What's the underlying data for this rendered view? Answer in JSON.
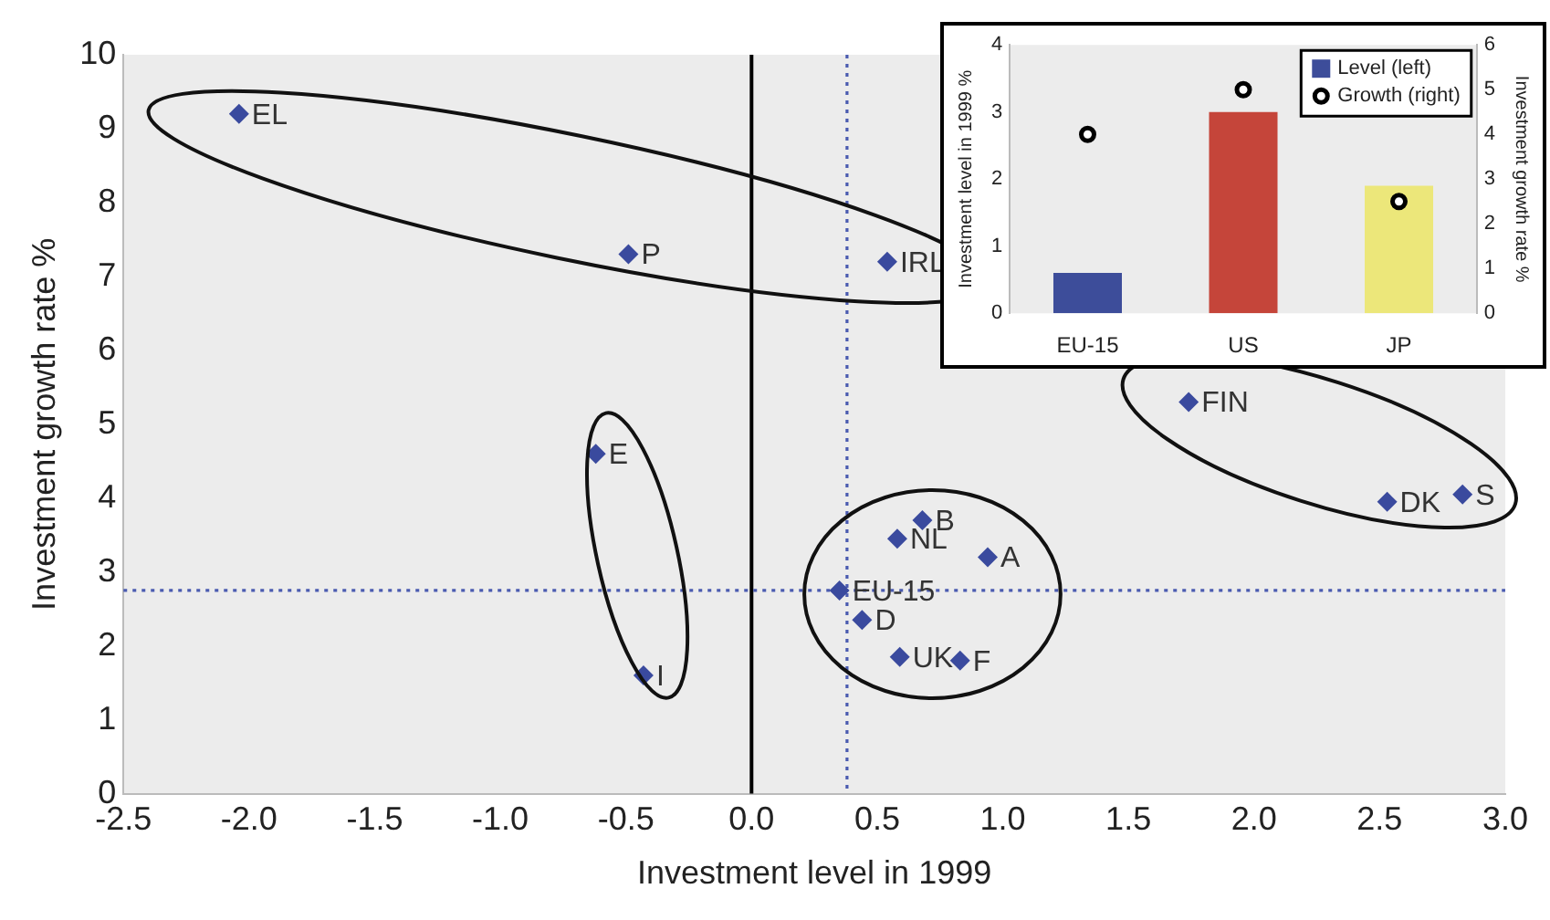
{
  "chart_data": [
    {
      "type": "scatter",
      "xlabel": "Investment level in 1999",
      "ylabel": "Investment growth rate %",
      "x": [
        -2.04,
        -0.49,
        0.54,
        -0.62,
        -0.43,
        0.35,
        0.44,
        0.68,
        0.58,
        0.94,
        0.59,
        0.83,
        1.74,
        2.53,
        2.83
      ],
      "values": [
        9.2,
        7.3,
        7.2,
        4.6,
        1.6,
        2.75,
        2.35,
        3.7,
        3.45,
        3.2,
        1.85,
        1.8,
        5.3,
        3.95,
        4.05
      ],
      "color": "#3a4a9e",
      "marker": "diamond",
      "xlim": [
        -2.5,
        3
      ],
      "xticks": [
        -2.5,
        {
          "value": -2,
          "label": "-2.0"
        },
        -1.5,
        {
          "value": -1,
          "label": "-1.0"
        },
        -0.5,
        {
          "value": 0,
          "label": "0.0"
        },
        0.5,
        {
          "value": 1,
          "label": "1.0"
        },
        1.5,
        {
          "value": 2,
          "label": "2.0"
        },
        2.5,
        {
          "value": 3,
          "label": "3.0"
        }
      ],
      "ylim": [
        0,
        10
      ],
      "yticks": [
        0,
        1,
        2,
        3,
        4,
        5,
        6,
        7,
        8,
        9,
        10
      ],
      "ref_lines": [
        {
          "axis": "x",
          "value": 0,
          "color": "#000000",
          "line_style": "solid"
        },
        {
          "axis": "x",
          "value": 0.38,
          "color": "#4a5bb0",
          "line_style": "dotted"
        },
        {
          "axis": "y",
          "value": 2.75,
          "color": "#4a5bb0",
          "line_style": "dotted"
        }
      ],
      "annotations": [
        {
          "text": "EL",
          "x": -2.04,
          "y": 9.2
        },
        {
          "text": "P",
          "x": -0.49,
          "y": 7.3
        },
        {
          "text": "IRL",
          "x": 0.54,
          "y": 7.2
        },
        {
          "text": "E",
          "x": -0.62,
          "y": 4.6
        },
        {
          "text": "I",
          "x": -0.43,
          "y": 1.6
        },
        {
          "text": "EU-15",
          "x": 0.35,
          "y": 2.75
        },
        {
          "text": "D",
          "x": 0.44,
          "y": 2.35
        },
        {
          "text": "B",
          "x": 0.68,
          "y": 3.7
        },
        {
          "text": "NL",
          "x": 0.58,
          "y": 3.45
        },
        {
          "text": "A",
          "x": 0.94,
          "y": 3.2
        },
        {
          "text": "UK",
          "x": 0.59,
          "y": 1.85
        },
        {
          "text": "F",
          "x": 0.83,
          "y": 1.8
        },
        {
          "text": "FIN",
          "x": 1.74,
          "y": 5.3
        },
        {
          "text": "DK",
          "x": 2.53,
          "y": 3.95
        },
        {
          "text": "S",
          "x": 2.83,
          "y": 4.05
        }
      ]
    },
    {
      "type": "bar",
      "categories": [
        "EU-15",
        "US",
        "JP"
      ],
      "ylabel": "Investment level in 1999 %",
      "y2label": "Investment growth rate %",
      "series": [
        {
          "name": "Level (left)",
          "color": "#3d4d9a",
          "colors": [
            "#3d4d9a",
            "#c5453a",
            "#ece77a"
          ],
          "values": [
            0.6,
            3.0,
            1.9
          ]
        },
        {
          "name": "Growth (right)",
          "type": "scatter",
          "axis": "y2",
          "color": "#000000",
          "x": [
            "EU-15",
            "US",
            "JP"
          ],
          "values": [
            4.0,
            5.0,
            2.5
          ]
        }
      ],
      "marker": "circle",
      "ylim": [
        0,
        4
      ],
      "yticks": [
        0,
        1,
        2,
        3,
        4
      ],
      "y2lim": [
        0,
        6
      ],
      "y2ticks": [
        0,
        1,
        2,
        3,
        4,
        5,
        6
      ],
      "legend": "top right"
    }
  ]
}
